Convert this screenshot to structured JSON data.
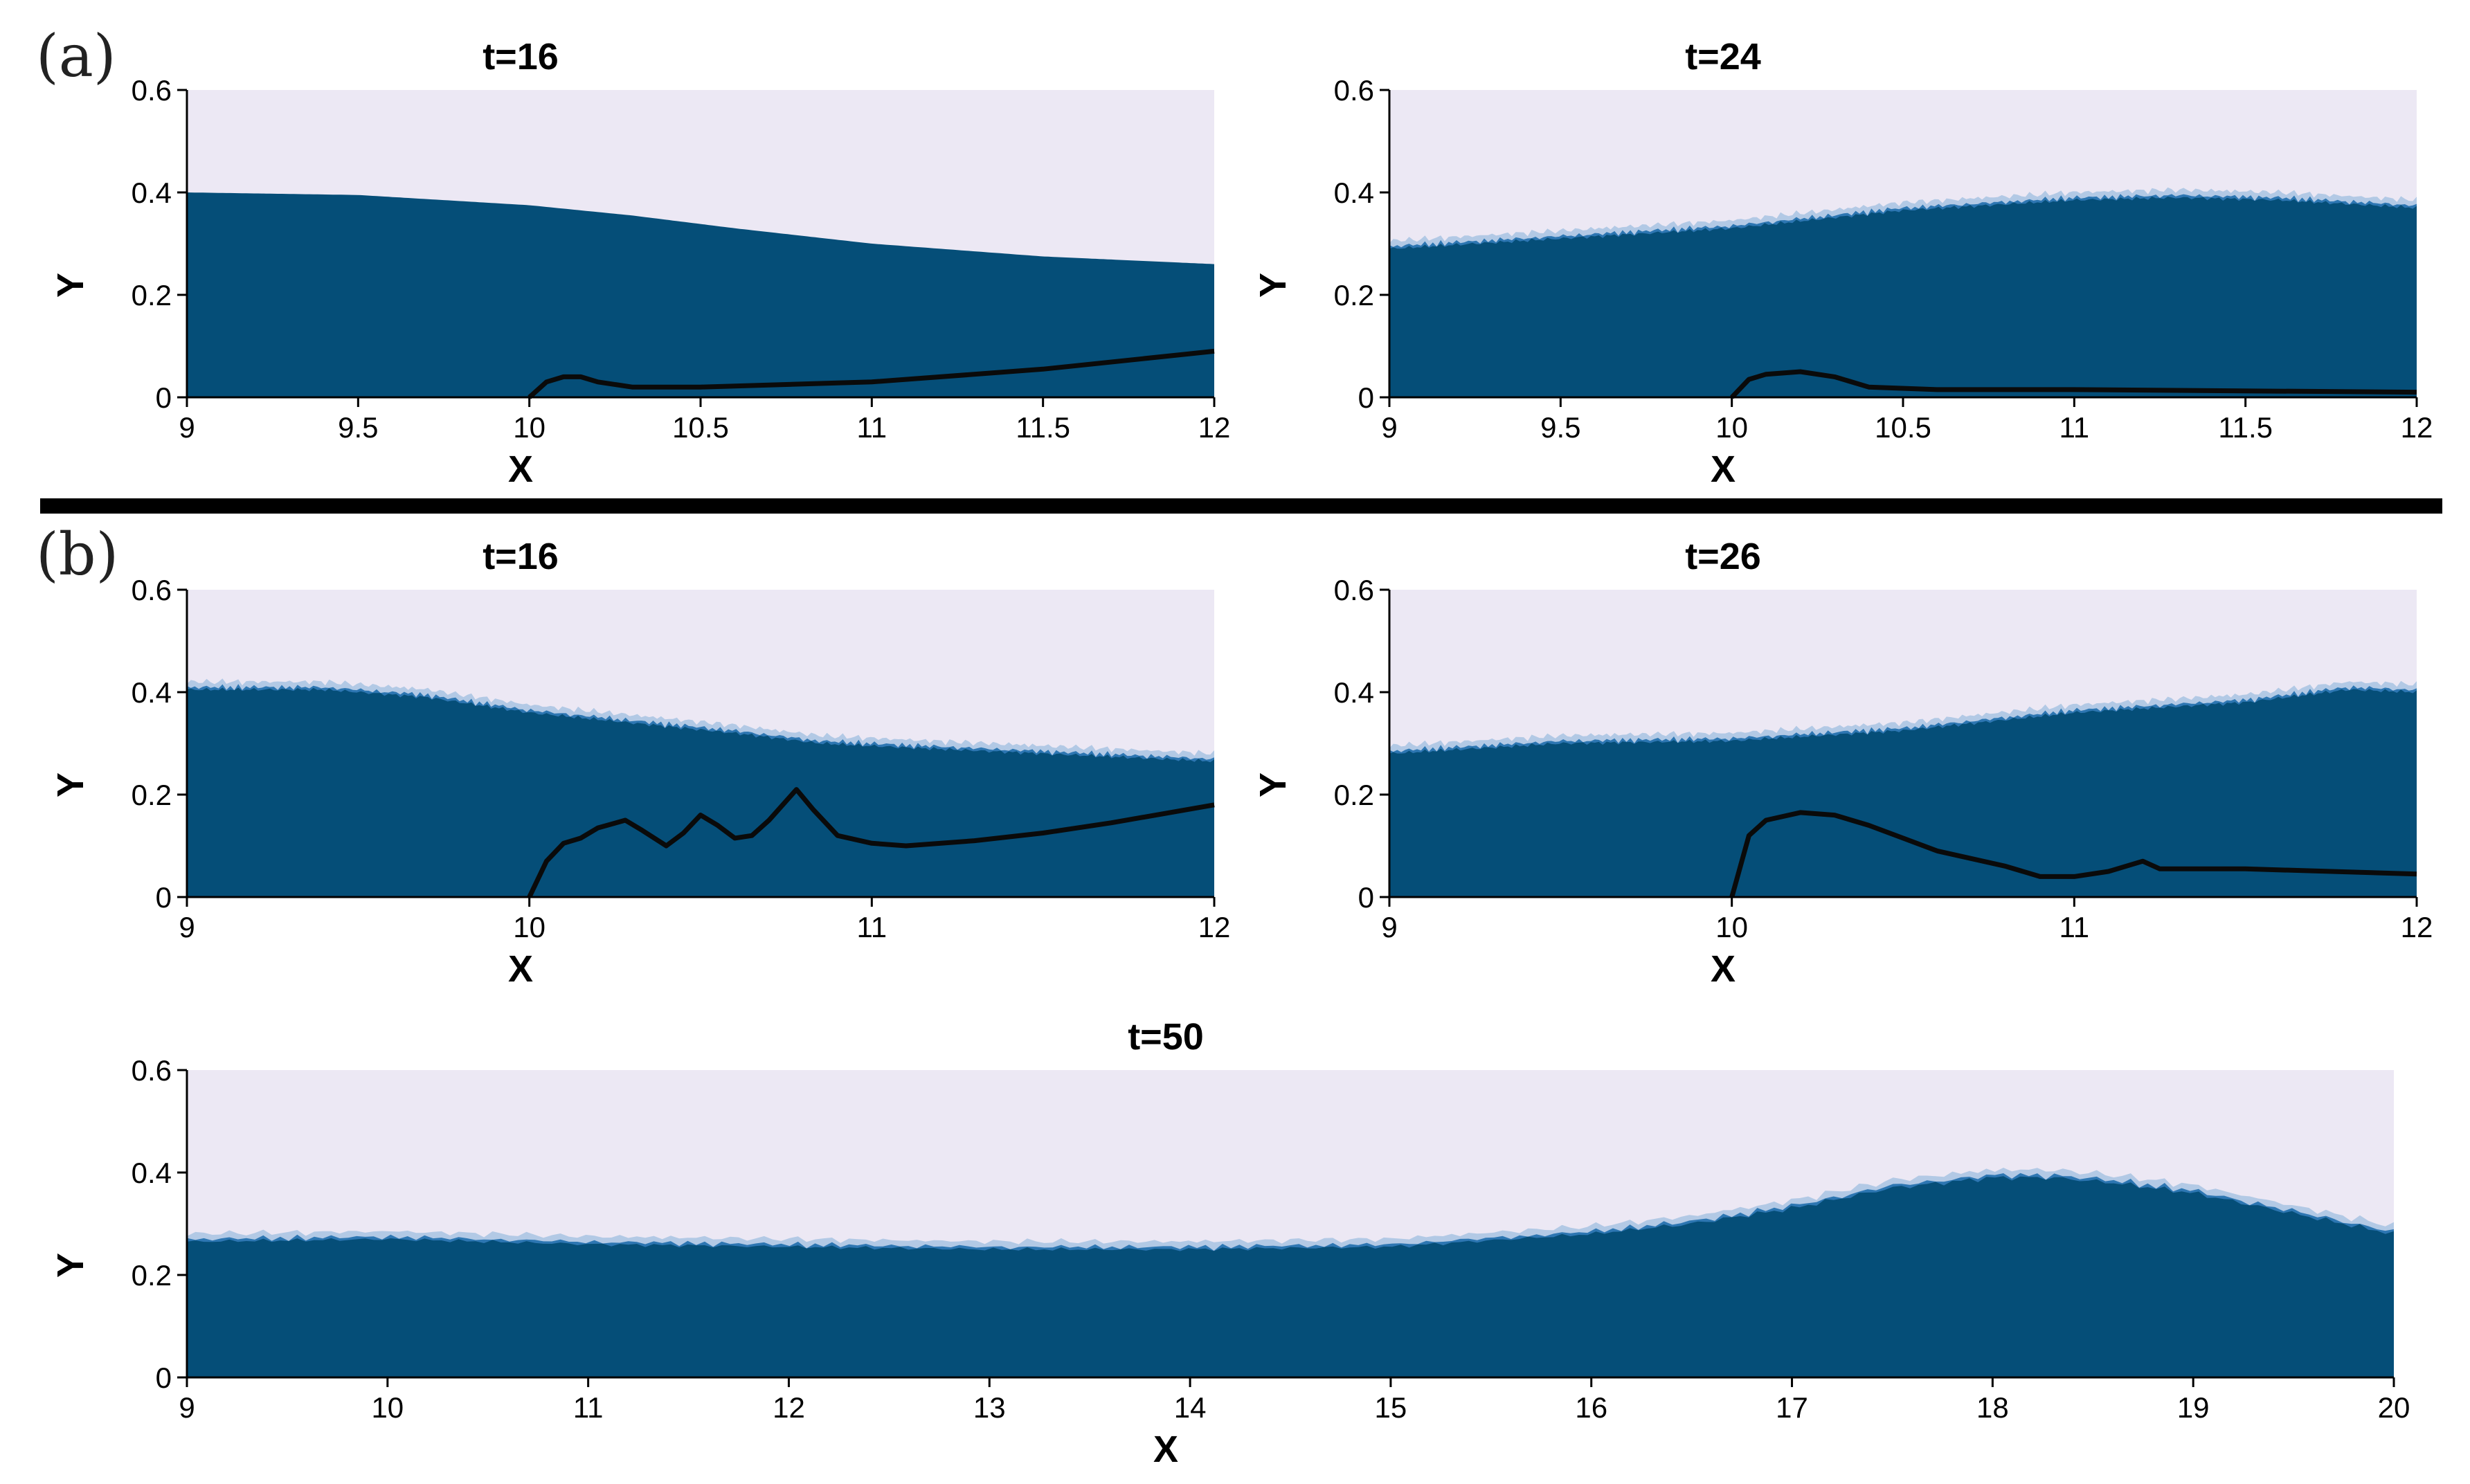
{
  "figure": {
    "panel_labels": {
      "a": "(a)",
      "b": "(b)"
    }
  },
  "colors": {
    "air": "#ece8f4",
    "water": "#054e78",
    "mix": "#2d76b2",
    "spray": "#9fbfe0",
    "profile": "#0a0a0a",
    "divider": "#000000"
  },
  "chart_data": [
    {
      "id": "a-left",
      "group": "(a)",
      "type": "area",
      "title": "t=16",
      "xlabel": "X",
      "ylabel": "Y",
      "xlim": [
        9,
        12
      ],
      "ylim": [
        0,
        0.6
      ],
      "xticks": [
        9,
        9.5,
        10,
        10.5,
        11,
        11.5,
        12
      ],
      "xtick_labels": [
        "9",
        "9.5",
        "10",
        "10.5",
        "11",
        "11.5",
        "12"
      ],
      "yticks": [
        0,
        0.2,
        0.4,
        0.6
      ],
      "ytick_labels": [
        "0",
        "0.2",
        "0.4",
        "0.6"
      ],
      "series": [
        {
          "role": "free-surface",
          "x": [
            9,
            9.5,
            10,
            10.3,
            10.6,
            11,
            11.5,
            12
          ],
          "y": [
            0.4,
            0.395,
            0.375,
            0.355,
            0.33,
            0.3,
            0.275,
            0.26
          ]
        },
        {
          "role": "profile",
          "x": [
            10,
            10.05,
            10.1,
            10.15,
            10.2,
            10.3,
            10.5,
            11,
            11.5,
            12
          ],
          "y": [
            0,
            0.03,
            0.04,
            0.04,
            0.03,
            0.02,
            0.02,
            0.03,
            0.055,
            0.09
          ]
        }
      ]
    },
    {
      "id": "a-right",
      "group": "(a)",
      "type": "area",
      "title": "t=24",
      "xlabel": "X",
      "ylabel": "Y",
      "xlim": [
        9,
        12
      ],
      "ylim": [
        0,
        0.6
      ],
      "xticks": [
        9,
        9.5,
        10,
        10.5,
        11,
        11.5,
        12
      ],
      "xtick_labels": [
        "9",
        "9.5",
        "10",
        "10.5",
        "11",
        "11.5",
        "12"
      ],
      "yticks": [
        0,
        0.2,
        0.4,
        0.6
      ],
      "ytick_labels": [
        "0",
        "0.2",
        "0.4",
        "0.6"
      ],
      "series": [
        {
          "role": "free-surface",
          "x": [
            9,
            9.5,
            10,
            10.5,
            11,
            11.3,
            11.6,
            12
          ],
          "y": [
            0.29,
            0.31,
            0.33,
            0.365,
            0.385,
            0.39,
            0.385,
            0.37
          ]
        },
        {
          "role": "profile",
          "x": [
            10,
            10.05,
            10.1,
            10.2,
            10.3,
            10.4,
            10.6,
            11,
            12
          ],
          "y": [
            0,
            0.035,
            0.045,
            0.05,
            0.04,
            0.02,
            0.015,
            0.015,
            0.01
          ]
        }
      ]
    },
    {
      "id": "b-left",
      "group": "(b)",
      "type": "area",
      "title": "t=16",
      "xlabel": "X",
      "ylabel": "Y",
      "xlim": [
        9,
        12
      ],
      "ylim": [
        0,
        0.6
      ],
      "xticks": [
        9,
        10,
        11,
        12
      ],
      "xtick_labels": [
        "9",
        "10",
        "11",
        "12"
      ],
      "yticks": [
        0,
        0.2,
        0.4,
        0.6
      ],
      "ytick_labels": [
        "0",
        "0.2",
        "0.4",
        "0.6"
      ],
      "series": [
        {
          "role": "free-surface",
          "x": [
            9,
            9.4,
            9.7,
            10,
            10.3,
            10.6,
            10.85,
            11,
            11.5,
            12
          ],
          "y": [
            0.405,
            0.405,
            0.39,
            0.36,
            0.34,
            0.32,
            0.3,
            0.295,
            0.28,
            0.265
          ]
        },
        {
          "role": "profile",
          "x": [
            10,
            10.05,
            10.1,
            10.15,
            10.2,
            10.28,
            10.33,
            10.4,
            10.45,
            10.5,
            10.55,
            10.6,
            10.65,
            10.7,
            10.78,
            10.83,
            10.9,
            11,
            11.1,
            11.3,
            11.5,
            11.7,
            12
          ],
          "y": [
            0,
            0.07,
            0.105,
            0.115,
            0.135,
            0.15,
            0.13,
            0.1,
            0.125,
            0.16,
            0.14,
            0.115,
            0.12,
            0.15,
            0.21,
            0.17,
            0.12,
            0.105,
            0.1,
            0.11,
            0.125,
            0.145,
            0.18
          ]
        }
      ]
    },
    {
      "id": "b-right",
      "group": "(b)",
      "type": "area",
      "title": "t=26",
      "xlabel": "X",
      "ylabel": "Y",
      "xlim": [
        9,
        12
      ],
      "ylim": [
        0,
        0.6
      ],
      "xticks": [
        9,
        10,
        11,
        12
      ],
      "xtick_labels": [
        "9",
        "10",
        "11",
        "12"
      ],
      "yticks": [
        0,
        0.2,
        0.4,
        0.6
      ],
      "ytick_labels": [
        "0",
        "0.2",
        "0.4",
        "0.6"
      ],
      "series": [
        {
          "role": "free-surface",
          "x": [
            9,
            9.5,
            10,
            10.5,
            11,
            11.5,
            11.8,
            12
          ],
          "y": [
            0.28,
            0.3,
            0.305,
            0.325,
            0.36,
            0.38,
            0.405,
            0.4
          ]
        },
        {
          "role": "profile",
          "x": [
            10,
            10.05,
            10.1,
            10.2,
            10.3,
            10.4,
            10.5,
            10.6,
            10.8,
            10.9,
            11,
            11.1,
            11.2,
            11.25,
            11.5,
            12
          ],
          "y": [
            0,
            0.12,
            0.15,
            0.165,
            0.16,
            0.14,
            0.115,
            0.09,
            0.06,
            0.04,
            0.04,
            0.05,
            0.07,
            0.055,
            0.055,
            0.045
          ]
        }
      ]
    },
    {
      "id": "b-bottom",
      "group": "(b)",
      "type": "area",
      "title": "t=50",
      "xlabel": "X",
      "ylabel": "Y",
      "xlim": [
        9,
        20
      ],
      "ylim": [
        0,
        0.6
      ],
      "xticks": [
        9,
        10,
        11,
        12,
        13,
        14,
        15,
        16,
        17,
        18,
        19,
        20
      ],
      "xtick_labels": [
        "9",
        "10",
        "11",
        "12",
        "13",
        "14",
        "15",
        "16",
        "17",
        "18",
        "19",
        "20"
      ],
      "yticks": [
        0,
        0.2,
        0.4,
        0.6
      ],
      "ytick_labels": [
        "0",
        "0.2",
        "0.4",
        "0.6"
      ],
      "series": [
        {
          "role": "free-surface",
          "x": [
            9,
            10,
            11,
            12,
            13,
            14,
            15,
            16,
            16.5,
            17,
            17.5,
            18,
            18.3,
            18.6,
            19,
            19.5,
            20
          ],
          "y": [
            0.265,
            0.27,
            0.26,
            0.255,
            0.25,
            0.25,
            0.255,
            0.28,
            0.3,
            0.33,
            0.37,
            0.39,
            0.39,
            0.38,
            0.36,
            0.32,
            0.28
          ]
        }
      ]
    }
  ]
}
